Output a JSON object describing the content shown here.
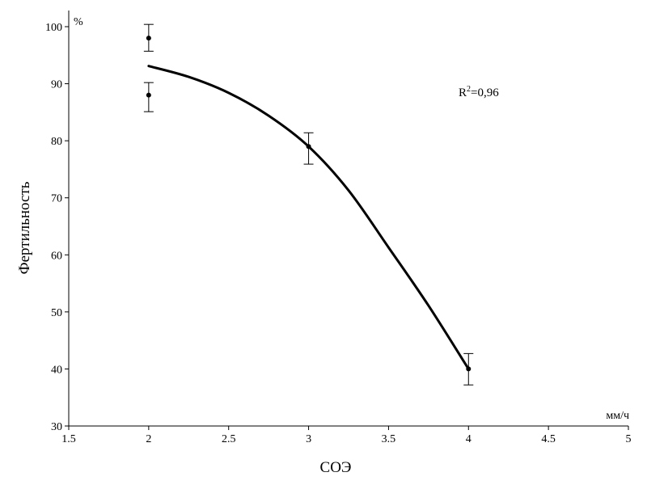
{
  "chart_data": {
    "type": "scatter",
    "xlabel": "СОЭ",
    "ylabel": "Фертильность",
    "x_unit": "мм/ч",
    "y_unit": "%",
    "xlim": [
      1.5,
      5
    ],
    "ylim": [
      30,
      100
    ],
    "x_ticks": [
      1.5,
      2,
      2.5,
      3,
      3.5,
      4,
      4.5,
      5
    ],
    "x_tick_labels": [
      "1.5",
      "2",
      "2.5",
      "3",
      "3.5",
      "4",
      "4.5",
      "5"
    ],
    "y_ticks": [
      30,
      40,
      50,
      60,
      70,
      80,
      90,
      100
    ],
    "y_tick_labels": [
      "30",
      "40",
      "50",
      "60",
      "70",
      "80",
      "90",
      "100"
    ],
    "grid": false,
    "points": [
      {
        "x": 2,
        "y": 98,
        "err_low": 95.7,
        "err_high": 100.4
      },
      {
        "x": 2,
        "y": 88,
        "err_low": 85.1,
        "err_high": 90.2
      },
      {
        "x": 3,
        "y": 79,
        "err_low": 75.9,
        "err_high": 81.4
      },
      {
        "x": 4,
        "y": 40,
        "err_low": 37.2,
        "err_high": 42.7
      }
    ],
    "fit_curve": {
      "x": [
        2,
        2.25,
        2.5,
        2.75,
        3,
        3.25,
        3.5,
        3.75,
        4
      ],
      "y": [
        93.1,
        91.2,
        88.4,
        84.4,
        79.0,
        71.3,
        61.3,
        51.1,
        40.0
      ]
    },
    "annotation": {
      "prefix": "R",
      "superscript": "2",
      "suffix": "=0,96"
    }
  }
}
